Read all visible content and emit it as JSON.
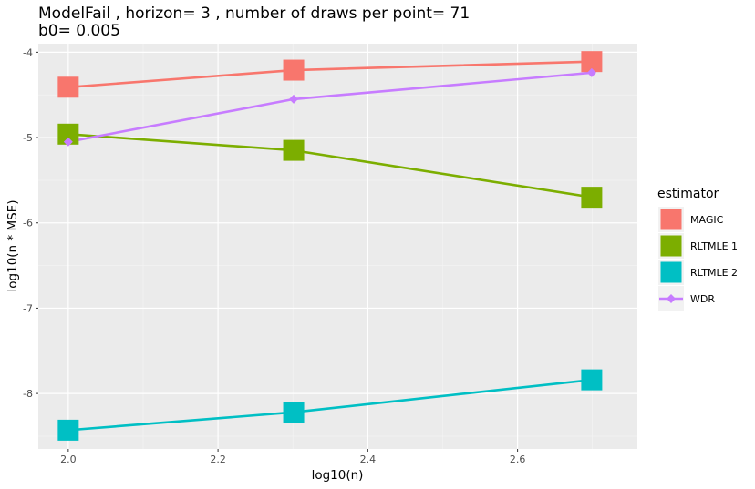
{
  "chart_data": {
    "type": "line",
    "title": "ModelFail , horizon= 3 , number of draws per point= 71",
    "subtitle": "b0= 0.005",
    "xlabel": "log10(n)",
    "ylabel": "log10(n * MSE)",
    "xlim": [
      1.96,
      2.76
    ],
    "ylim": [
      -8.65,
      -3.9
    ],
    "x_ticks": [
      2.0,
      2.2,
      2.4,
      2.6
    ],
    "x_tick_labels": [
      "2.0",
      "2.2",
      "2.4",
      "2.6"
    ],
    "y_ticks": [
      -8,
      -7,
      -6,
      -5,
      -4
    ],
    "y_tick_labels": [
      "-8",
      "-7",
      "-6",
      "-5",
      "-4"
    ],
    "grid": true,
    "legend_title": "estimator",
    "legend_position": "right",
    "series": [
      {
        "name": "MAGIC",
        "color": "#F8766D",
        "marker": "square",
        "x": [
          2.0,
          2.301,
          2.699
        ],
        "y": [
          -4.41,
          -4.21,
          -4.11
        ]
      },
      {
        "name": "RLTMLE 1",
        "color": "#7CAE00",
        "marker": "square",
        "x": [
          2.0,
          2.301,
          2.699
        ],
        "y": [
          -4.96,
          -5.15,
          -5.7
        ]
      },
      {
        "name": "RLTMLE 2",
        "color": "#00BFC4",
        "marker": "square",
        "x": [
          2.0,
          2.301,
          2.699
        ],
        "y": [
          -8.43,
          -8.22,
          -7.84
        ]
      },
      {
        "name": "WDR",
        "color": "#C77CFF",
        "marker": "diamond",
        "x": [
          2.0,
          2.301,
          2.699
        ],
        "y": [
          -5.05,
          -4.55,
          -4.24
        ]
      }
    ]
  }
}
